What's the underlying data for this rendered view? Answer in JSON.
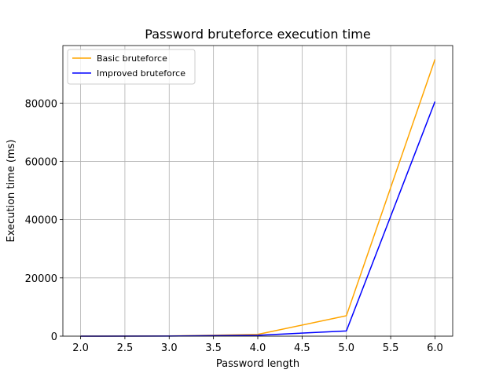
{
  "chart_data": {
    "type": "line",
    "title": "Password bruteforce execution time",
    "xlabel": "Password length",
    "ylabel": "Execution time (ms)",
    "xlim": [
      1.8,
      6.2
    ],
    "ylim": [
      0,
      99750
    ],
    "xticks": [
      2.0,
      2.5,
      3.0,
      3.5,
      4.0,
      4.5,
      5.0,
      5.5,
      6.0
    ],
    "xtick_labels": [
      "2.0",
      "2.5",
      "3.0",
      "3.5",
      "4.0",
      "4.5",
      "5.0",
      "5.5",
      "6.0"
    ],
    "yticks": [
      0,
      20000,
      40000,
      60000,
      80000
    ],
    "ytick_labels": [
      "0",
      "20000",
      "40000",
      "60000",
      "80000"
    ],
    "grid": true,
    "legend_position": "top-left",
    "x": [
      2,
      3,
      4,
      5,
      6
    ],
    "series": [
      {
        "name": "Basic bruteforce",
        "color": "#ffa500",
        "values": [
          0,
          50,
          600,
          7000,
          95000
        ]
      },
      {
        "name": "Improved bruteforce",
        "color": "#0000ff",
        "values": [
          0,
          30,
          300,
          1800,
          80500
        ]
      }
    ]
  }
}
